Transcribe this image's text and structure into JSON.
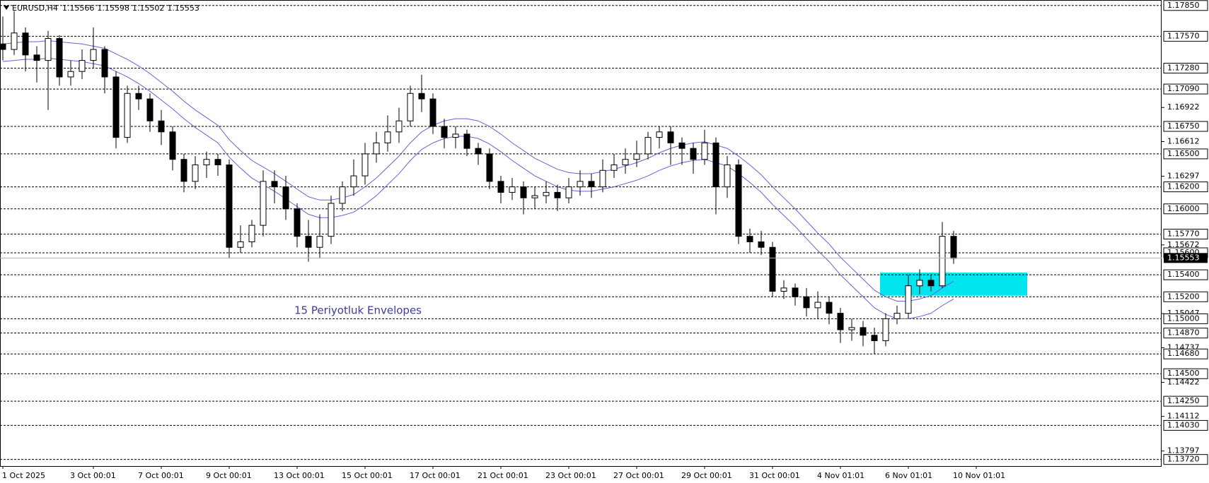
{
  "symbol": "EURUSD,H4",
  "quote": {
    "open": 1.15566,
    "high": 1.15598,
    "low": 1.15502,
    "close": 1.15553
  },
  "chart_data": {
    "type": "candlestick",
    "categories": [
      "1 Oct 2025",
      null,
      null,
      null,
      null,
      null,
      null,
      null,
      "3 Oct 00:01",
      null,
      null,
      null,
      null,
      null,
      "7 Oct 00:01",
      null,
      null,
      null,
      null,
      null,
      "9 Oct 00:01",
      null,
      null,
      null,
      null,
      null,
      "13 Oct 00:01",
      null,
      null,
      null,
      null,
      null,
      "15 Oct 00:01",
      null,
      null,
      null,
      null,
      null,
      "17 Oct 00:01",
      null,
      null,
      null,
      null,
      null,
      "21 Oct 00:01",
      null,
      null,
      null,
      null,
      null,
      "23 Oct 00:01",
      null,
      null,
      null,
      null,
      null,
      "27 Oct 00:01",
      null,
      null,
      null,
      null,
      null,
      "29 Oct 00:01",
      null,
      null,
      null,
      null,
      null,
      "31 Oct 00:01",
      null,
      null,
      null,
      null,
      null,
      "4 Nov 01:01",
      null,
      null,
      null,
      null,
      null,
      "6 Nov 01:01",
      null,
      null,
      null,
      null,
      null,
      "10 Nov 01:01"
    ],
    "open": [
      1.175,
      1.1745,
      1.176,
      1.174,
      1.1735,
      1.1755,
      1.172,
      1.1725,
      1.1735,
      1.1745,
      1.172,
      1.1665,
      1.1705,
      1.17,
      1.168,
      1.167,
      1.1645,
      1.1625,
      1.164,
      1.1645,
      1.164,
      1.1565,
      1.157,
      1.1585,
      1.1625,
      1.162,
      1.16,
      1.1575,
      1.1565,
      1.1575,
      1.1605,
      1.162,
      1.163,
      1.165,
      1.166,
      1.167,
      1.168,
      1.1705,
      1.17,
      1.1675,
      1.1665,
      1.1668,
      1.1655,
      1.165,
      1.1625,
      1.1615,
      1.162,
      1.161,
      1.1612,
      1.1615,
      1.161,
      1.162,
      1.1625,
      1.162,
      1.1635,
      1.164,
      1.1645,
      1.165,
      1.1665,
      1.167,
      1.166,
      1.1655,
      1.1645,
      1.166,
      1.162,
      1.164,
      1.1575,
      1.157,
      1.1565,
      1.1525,
      1.1528,
      1.152,
      1.151,
      1.1515,
      1.1505,
      1.149,
      1.1492,
      1.1485,
      1.148,
      1.15,
      1.1505,
      1.153,
      1.1535,
      1.153,
      1.1575,
      null,
      null
    ],
    "high": [
      1.1775,
      1.178,
      1.1765,
      1.1748,
      1.1762,
      1.1758,
      1.1735,
      1.1745,
      1.1765,
      1.1748,
      1.1725,
      1.1712,
      1.1712,
      1.1705,
      1.169,
      1.1675,
      1.165,
      1.1648,
      1.1652,
      1.165,
      1.1645,
      1.1585,
      1.159,
      1.1635,
      1.1635,
      1.163,
      1.1605,
      1.159,
      1.1595,
      1.1612,
      1.1625,
      1.1645,
      1.166,
      1.167,
      1.1685,
      1.1692,
      1.1712,
      1.1722,
      1.1705,
      1.1682,
      1.1675,
      1.1672,
      1.166,
      1.1655,
      1.163,
      1.1628,
      1.1625,
      1.162,
      1.1625,
      1.1622,
      1.1628,
      1.1635,
      1.1632,
      1.1645,
      1.165,
      1.1655,
      1.1662,
      1.167,
      1.1675,
      1.1675,
      1.1665,
      1.166,
      1.1672,
      1.1665,
      1.1648,
      1.1645,
      1.1582,
      1.158,
      1.157,
      1.1535,
      1.1532,
      1.1528,
      1.1525,
      1.152,
      1.151,
      1.15,
      1.1498,
      1.1492,
      1.1505,
      1.1512,
      1.154,
      1.1545,
      1.154,
      1.1588,
      1.158,
      null,
      null
    ],
    "low": [
      1.1735,
      1.174,
      1.1725,
      1.1715,
      1.169,
      1.1712,
      1.1712,
      1.1718,
      1.1728,
      1.1705,
      1.1655,
      1.166,
      1.169,
      1.167,
      1.1658,
      1.1635,
      1.1615,
      1.1618,
      1.1628,
      1.163,
      1.1555,
      1.156,
      1.1565,
      1.1575,
      1.1605,
      1.159,
      1.1565,
      1.1552,
      1.1555,
      1.1568,
      1.1598,
      1.1612,
      1.1622,
      1.1642,
      1.1652,
      1.166,
      1.1675,
      1.1688,
      1.1668,
      1.1655,
      1.1655,
      1.1648,
      1.164,
      1.1618,
      1.1605,
      1.1608,
      1.1595,
      1.16,
      1.1605,
      1.1598,
      1.1605,
      1.1612,
      1.161,
      1.1615,
      1.1628,
      1.1632,
      1.1638,
      1.1645,
      1.1655,
      1.164,
      1.164,
      1.1632,
      1.164,
      1.1595,
      1.161,
      1.1568,
      1.156,
      1.1558,
      1.152,
      1.1518,
      1.1512,
      1.1502,
      1.15,
      1.1495,
      1.1478,
      1.148,
      1.1475,
      1.1468,
      1.1475,
      1.1495,
      1.15,
      1.1522,
      1.1525,
      1.1528,
      1.155,
      null,
      null
    ],
    "close": [
      1.1745,
      1.176,
      1.174,
      1.1735,
      1.1755,
      1.172,
      1.1725,
      1.1735,
      1.1745,
      1.172,
      1.1665,
      1.1705,
      1.17,
      1.168,
      1.167,
      1.1645,
      1.1625,
      1.164,
      1.1645,
      1.164,
      1.1565,
      1.157,
      1.1585,
      1.1625,
      1.162,
      1.16,
      1.1575,
      1.1565,
      1.1575,
      1.1605,
      1.162,
      1.163,
      1.165,
      1.166,
      1.167,
      1.168,
      1.1705,
      1.17,
      1.1675,
      1.1665,
      1.1668,
      1.1655,
      1.165,
      1.1625,
      1.1615,
      1.162,
      1.161,
      1.1612,
      1.1615,
      1.161,
      1.162,
      1.1625,
      1.162,
      1.1635,
      1.164,
      1.1645,
      1.165,
      1.1665,
      1.167,
      1.166,
      1.1655,
      1.1645,
      1.166,
      1.162,
      1.164,
      1.1575,
      1.157,
      1.1565,
      1.1525,
      1.1528,
      1.152,
      1.151,
      1.1515,
      1.1505,
      1.149,
      1.1492,
      1.1485,
      1.148,
      1.15,
      1.1505,
      1.153,
      1.1535,
      1.153,
      1.1575,
      1.1555,
      null,
      null
    ],
    "envelopes": {
      "name": "15 Periyotluk Envelopes",
      "color": "#6b5fd6",
      "upper": [
        1.175,
        1.1751,
        1.1752,
        1.1752,
        1.1753,
        1.1752,
        1.1751,
        1.175,
        1.1748,
        1.1746,
        1.1741,
        1.1736,
        1.173,
        1.1723,
        1.1715,
        1.1707,
        1.1698,
        1.169,
        1.1683,
        1.1676,
        1.1663,
        1.1653,
        1.1644,
        1.1638,
        1.1632,
        1.1625,
        1.1618,
        1.1611,
        1.1608,
        1.1608,
        1.161,
        1.1613,
        1.162,
        1.1628,
        1.1638,
        1.1648,
        1.166,
        1.167,
        1.1676,
        1.168,
        1.1682,
        1.1682,
        1.168,
        1.1675,
        1.1668,
        1.166,
        1.1653,
        1.1646,
        1.1641,
        1.1636,
        1.1633,
        1.1632,
        1.1632,
        1.1634,
        1.1636,
        1.1639,
        1.1642,
        1.1646,
        1.1651,
        1.1655,
        1.1658,
        1.166,
        1.1661,
        1.1658,
        1.1655,
        1.1648,
        1.164,
        1.1631,
        1.162,
        1.161,
        1.16,
        1.1589,
        1.1578,
        1.1568,
        1.1556,
        1.1546,
        1.1536,
        1.1526,
        1.152,
        1.1516,
        1.1516,
        1.1518,
        1.1521,
        1.1528,
        1.1534,
        null,
        null
      ],
      "lower": [
        1.1734,
        1.1735,
        1.1736,
        1.1736,
        1.1737,
        1.1736,
        1.1735,
        1.1734,
        1.1732,
        1.173,
        1.1725,
        1.172,
        1.1714,
        1.1707,
        1.1699,
        1.1691,
        1.1682,
        1.1674,
        1.1667,
        1.166,
        1.1647,
        1.1637,
        1.1628,
        1.1622,
        1.1616,
        1.1609,
        1.1602,
        1.1595,
        1.1592,
        1.1592,
        1.1594,
        1.1597,
        1.1604,
        1.1612,
        1.1622,
        1.1632,
        1.1644,
        1.1654,
        1.166,
        1.1664,
        1.1666,
        1.1666,
        1.1664,
        1.1659,
        1.1652,
        1.1644,
        1.1637,
        1.163,
        1.1625,
        1.162,
        1.1617,
        1.1616,
        1.1616,
        1.1618,
        1.162,
        1.1623,
        1.1626,
        1.163,
        1.1635,
        1.1639,
        1.1642,
        1.1644,
        1.1645,
        1.1642,
        1.1639,
        1.1632,
        1.1624,
        1.1615,
        1.1604,
        1.1594,
        1.1584,
        1.1573,
        1.1562,
        1.1552,
        1.154,
        1.153,
        1.152,
        1.151,
        1.1504,
        1.15,
        1.15,
        1.1502,
        1.1505,
        1.1512,
        1.1518,
        null,
        null
      ]
    },
    "zone": {
      "ylim": [
        1.1521,
        1.1542
      ],
      "color": "#00e5ee"
    },
    "levels": [
      {
        "value": 1.1785,
        "label": "1.17850"
      },
      {
        "value": 1.1757,
        "label": "1.17570"
      },
      {
        "value": 1.1728,
        "label": "1.17280"
      },
      {
        "value": 1.1709,
        "label": "1.17090"
      },
      {
        "value": 1.1675,
        "label": "1.16750"
      },
      {
        "value": 1.165,
        "label": "1.16500"
      },
      {
        "value": 1.162,
        "label": "1.16200"
      },
      {
        "value": 1.16,
        "label": "1.16000"
      },
      {
        "value": 1.1577,
        "label": "1.15770"
      },
      {
        "value": 1.156,
        "label": "1.15600"
      },
      {
        "value": 1.154,
        "label": "1.15400"
      },
      {
        "value": 1.152,
        "label": "1.15200"
      },
      {
        "value": 1.15,
        "label": "1.15000"
      },
      {
        "value": 1.1487,
        "label": "1.14870"
      },
      {
        "value": 1.1468,
        "label": "1.14680"
      },
      {
        "value": 1.145,
        "label": "1.14500"
      },
      {
        "value": 1.1425,
        "label": "1.14250"
      },
      {
        "value": 1.1403,
        "label": "1.14030"
      },
      {
        "value": 1.1372,
        "label": "1.13720"
      }
    ],
    "yticks": [
      1.16922,
      1.16612,
      1.16297,
      1.15672,
      1.15047,
      1.14737,
      1.14422,
      1.14112,
      1.13797
    ],
    "ylim": [
      1.1366,
      1.179
    ],
    "bull_color": "#ffffff",
    "bear_color": "#000000"
  }
}
